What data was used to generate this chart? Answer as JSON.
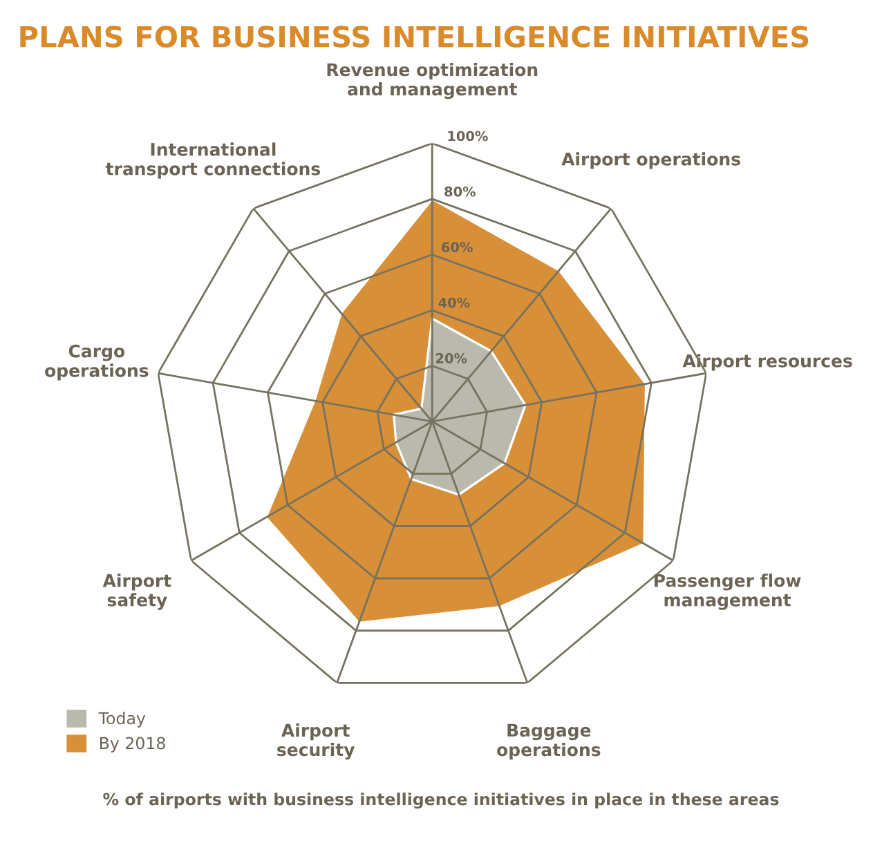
{
  "chart_data": {
    "type": "radar",
    "title": "PLANS FOR BUSINESS INTELLIGENCE INITIATIVES",
    "categories": [
      "Revenue optimization\nand management",
      "Airport operations",
      "Airport resources",
      "Passenger flow\nmanagement",
      "Baggage\noperations",
      "Airport\nsecurity",
      "Airport\nsafety",
      "Cargo\noperations",
      "International\ntransport connections"
    ],
    "series": [
      {
        "name": "By 2018",
        "color": "#d89038",
        "values": [
          80,
          71,
          78,
          88,
          71,
          77,
          69,
          43,
          51
        ]
      },
      {
        "name": "Today",
        "color": "#b9b9ad",
        "values": [
          37,
          33,
          34,
          30,
          28,
          22,
          15,
          14,
          6
        ]
      }
    ],
    "ylim": [
      0,
      100
    ],
    "yticks": [
      {
        "value": 20,
        "label": "20%"
      },
      {
        "value": 40,
        "label": "40%"
      },
      {
        "value": 60,
        "label": "60%"
      },
      {
        "value": 80,
        "label": "80%"
      },
      {
        "value": 100,
        "label": "100%"
      }
    ],
    "grid": true,
    "legend": "bottom left",
    "annotations": [
      "% of airports with business intelligence initiatives in place in these areas"
    ]
  }
}
